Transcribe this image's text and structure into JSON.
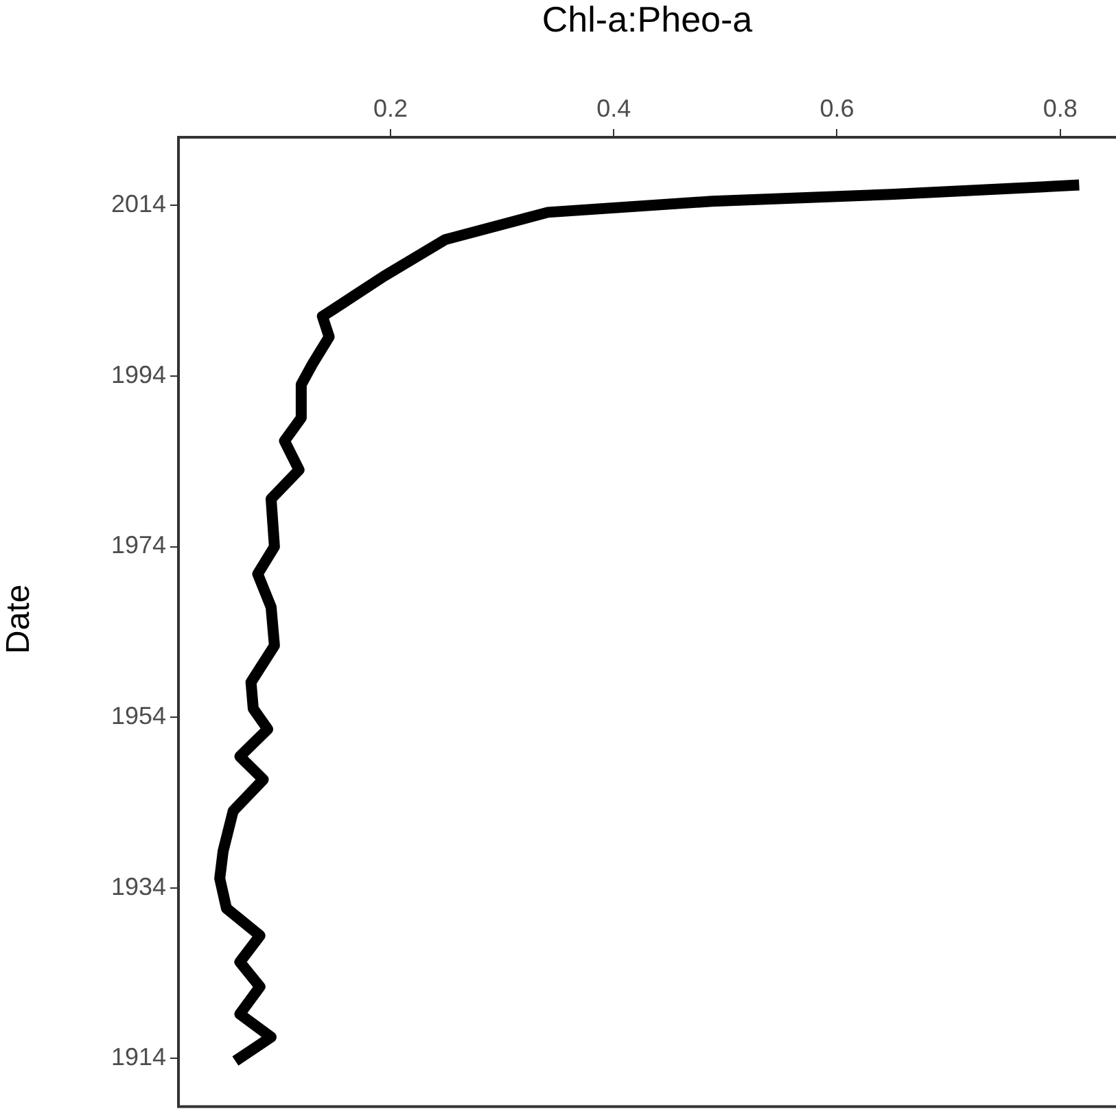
{
  "chart_data": {
    "type": "line",
    "xlabel": "Chl-a:Pheo-a",
    "ylabel": "Date",
    "x": [
      0.061,
      0.093,
      0.065,
      0.083,
      0.065,
      0.083,
      0.053,
      0.047,
      0.05,
      0.059,
      0.086,
      0.065,
      0.09,
      0.077,
      0.075,
      0.096,
      0.093,
      0.081,
      0.096,
      0.093,
      0.118,
      0.105,
      0.12,
      0.12,
      0.13,
      0.145,
      0.139,
      0.145,
      0.194,
      0.249,
      0.341,
      0.488,
      0.648,
      0.817
    ],
    "series": [
      {
        "color": "#000000",
        "values": [
          1913.7,
          1916.5,
          1919.2,
          1922.4,
          1925.3,
          1928.4,
          1931.6,
          1935.1,
          1938.3,
          1943.0,
          1946.7,
          1949.4,
          1952.6,
          1955.0,
          1958.1,
          1962.4,
          1966.9,
          1970.8,
          1974.0,
          1979.6,
          1983.0,
          1986.4,
          1989.1,
          1993.0,
          1995.4,
          1998.6,
          2001.0,
          2001.5,
          2005.7,
          2010.0,
          2013.2,
          2014.5,
          2015.3,
          2016.4
        ]
      }
    ],
    "xlim": [
      0.01,
      0.85
    ],
    "xticks": [
      0.2,
      0.4,
      0.6,
      0.8
    ],
    "ylim": [
      1909,
      2022
    ],
    "yticks": [
      1914,
      1934,
      1954,
      1974,
      1994,
      2014
    ],
    "grid": false,
    "legend": false,
    "marker": "none",
    "line_style": "solid"
  }
}
